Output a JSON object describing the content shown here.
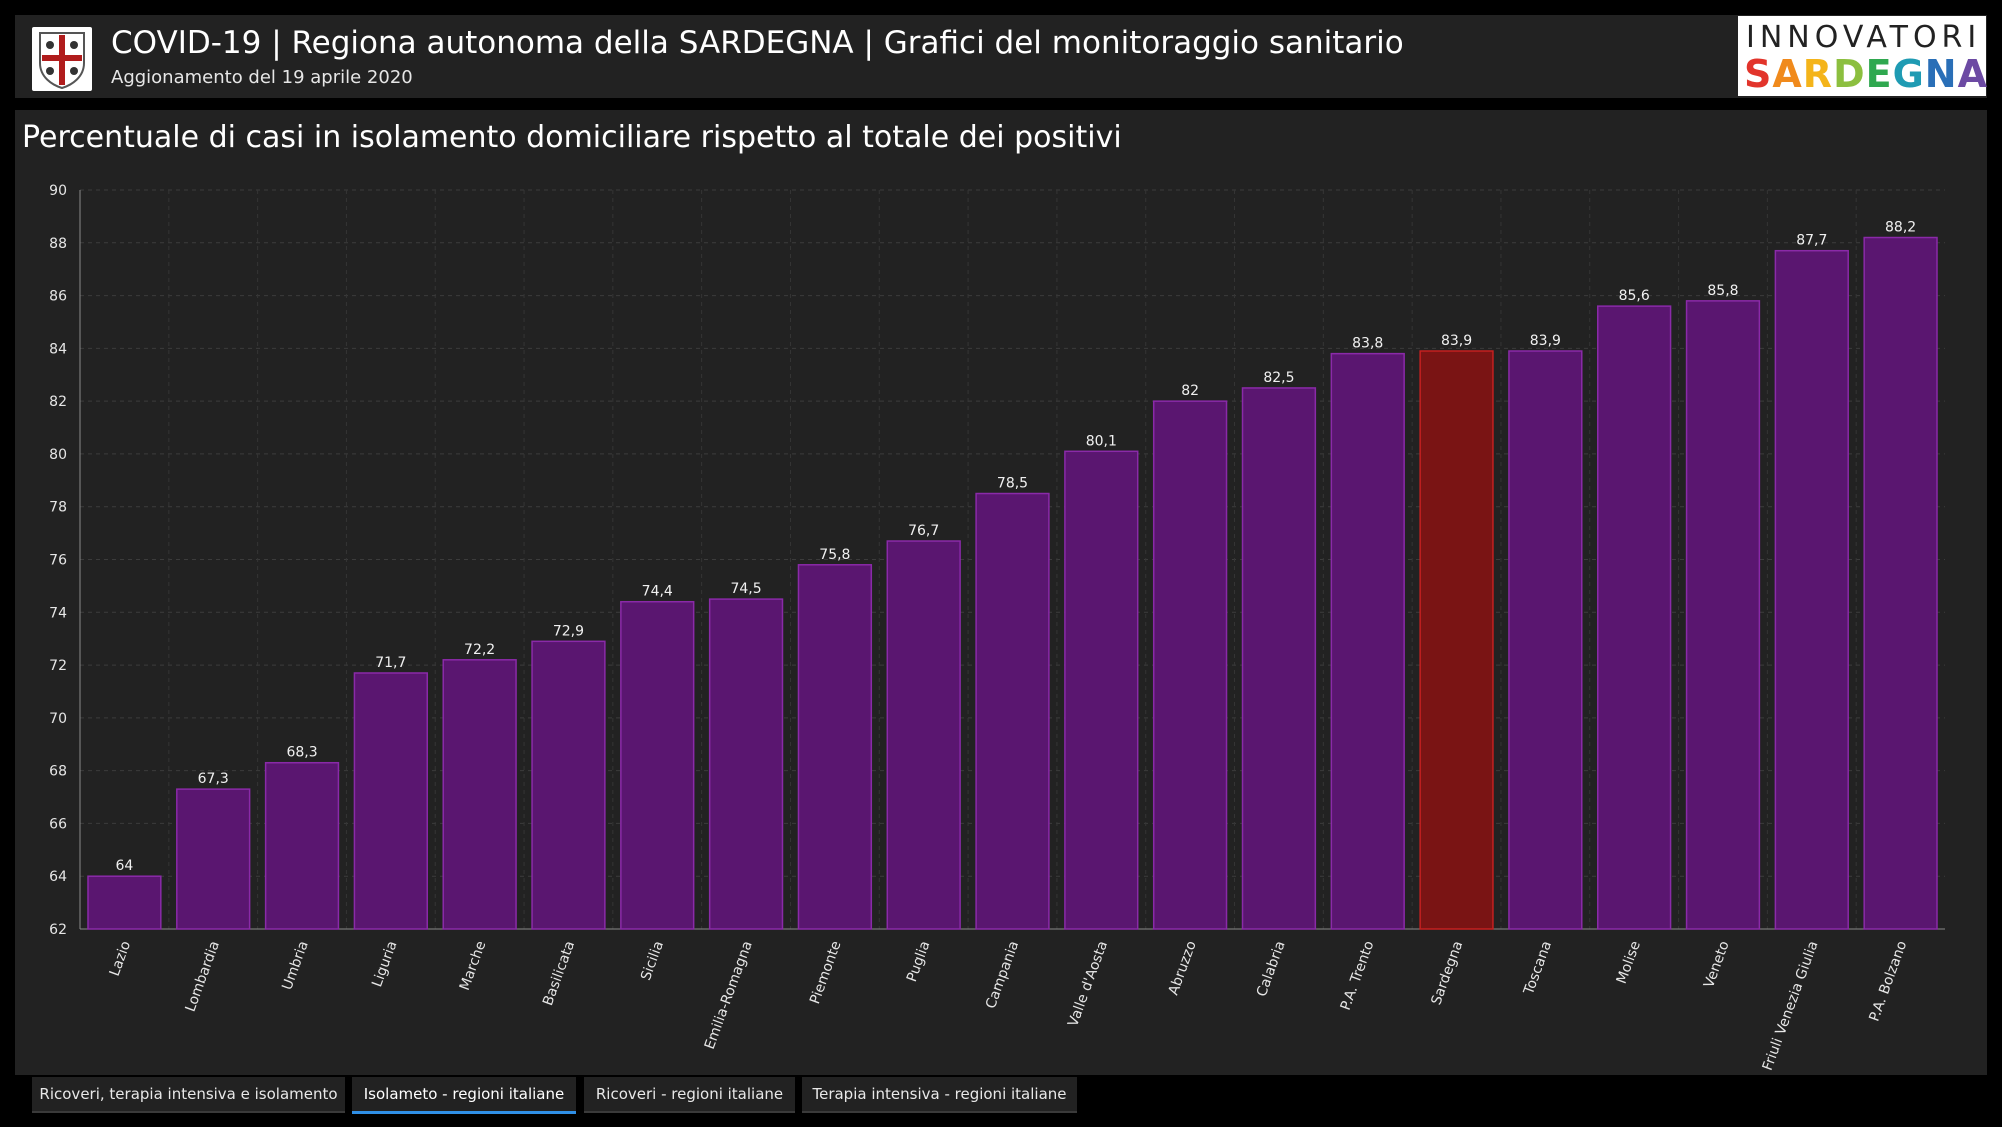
{
  "header": {
    "title": "COVID-19 | Regiona autonoma della SARDEGNA | Grafici del monitoraggio sanitario",
    "subtitle": "Aggionamento del 19 aprile 2020",
    "brand_top": "INNOVATORI",
    "brand_bottom": "SARDEGNA"
  },
  "tabs": [
    {
      "label": "Ricoveri, terapia intensiva e isolamento",
      "active": false
    },
    {
      "label": "Isolameto - regioni italiane",
      "active": true
    },
    {
      "label": "Ricoveri - regioni italiane",
      "active": false
    },
    {
      "label": "Terapia intensiva - regioni italiane",
      "active": false
    }
  ],
  "colors": {
    "bar": "#5a1670",
    "bar_border": "#8a2aa8",
    "highlight": "#7a1414",
    "highlight_border": "#c42020",
    "accent": "#2f8fe6"
  },
  "chart_data": {
    "type": "bar",
    "title": "Percentuale di casi in isolamento domiciliare rispetto al totale dei positivi",
    "xlabel": "",
    "ylabel": "",
    "ylim": [
      62,
      90
    ],
    "yticks": [
      "62",
      "64",
      "66",
      "68",
      "70",
      "72",
      "74",
      "76",
      "78",
      "80",
      "82",
      "84",
      "86",
      "88",
      "90"
    ],
    "grid": true,
    "highlight_category": "Sardegna",
    "categories": [
      "Lazio",
      "Lombardia",
      "Umbria",
      "Liguria",
      "Marche",
      "Basilicata",
      "Sicilia",
      "Emilia-Romagna",
      "Piemonte",
      "Puglia",
      "Campania",
      "Valle d'Aosta",
      "Abruzzo",
      "Calabria",
      "P.A. Trento",
      "Sardegna",
      "Toscana",
      "Molise",
      "Veneto",
      "Friuli Venezia Giulia",
      "P.A. Bolzano"
    ],
    "values": [
      64,
      67.3,
      68.3,
      71.7,
      72.2,
      72.9,
      74.4,
      74.5,
      75.8,
      76.7,
      78.5,
      80.1,
      82,
      82.5,
      83.8,
      83.9,
      83.9,
      85.6,
      85.8,
      87.7,
      88.2
    ],
    "value_labels": [
      "64",
      "67,3",
      "68,3",
      "71,7",
      "72,2",
      "72,9",
      "74,4",
      "74,5",
      "75,8",
      "76,7",
      "78,5",
      "80,1",
      "82",
      "82,5",
      "83,8",
      "83,9",
      "83,9",
      "85,6",
      "85,8",
      "87,7",
      "88,2"
    ]
  }
}
